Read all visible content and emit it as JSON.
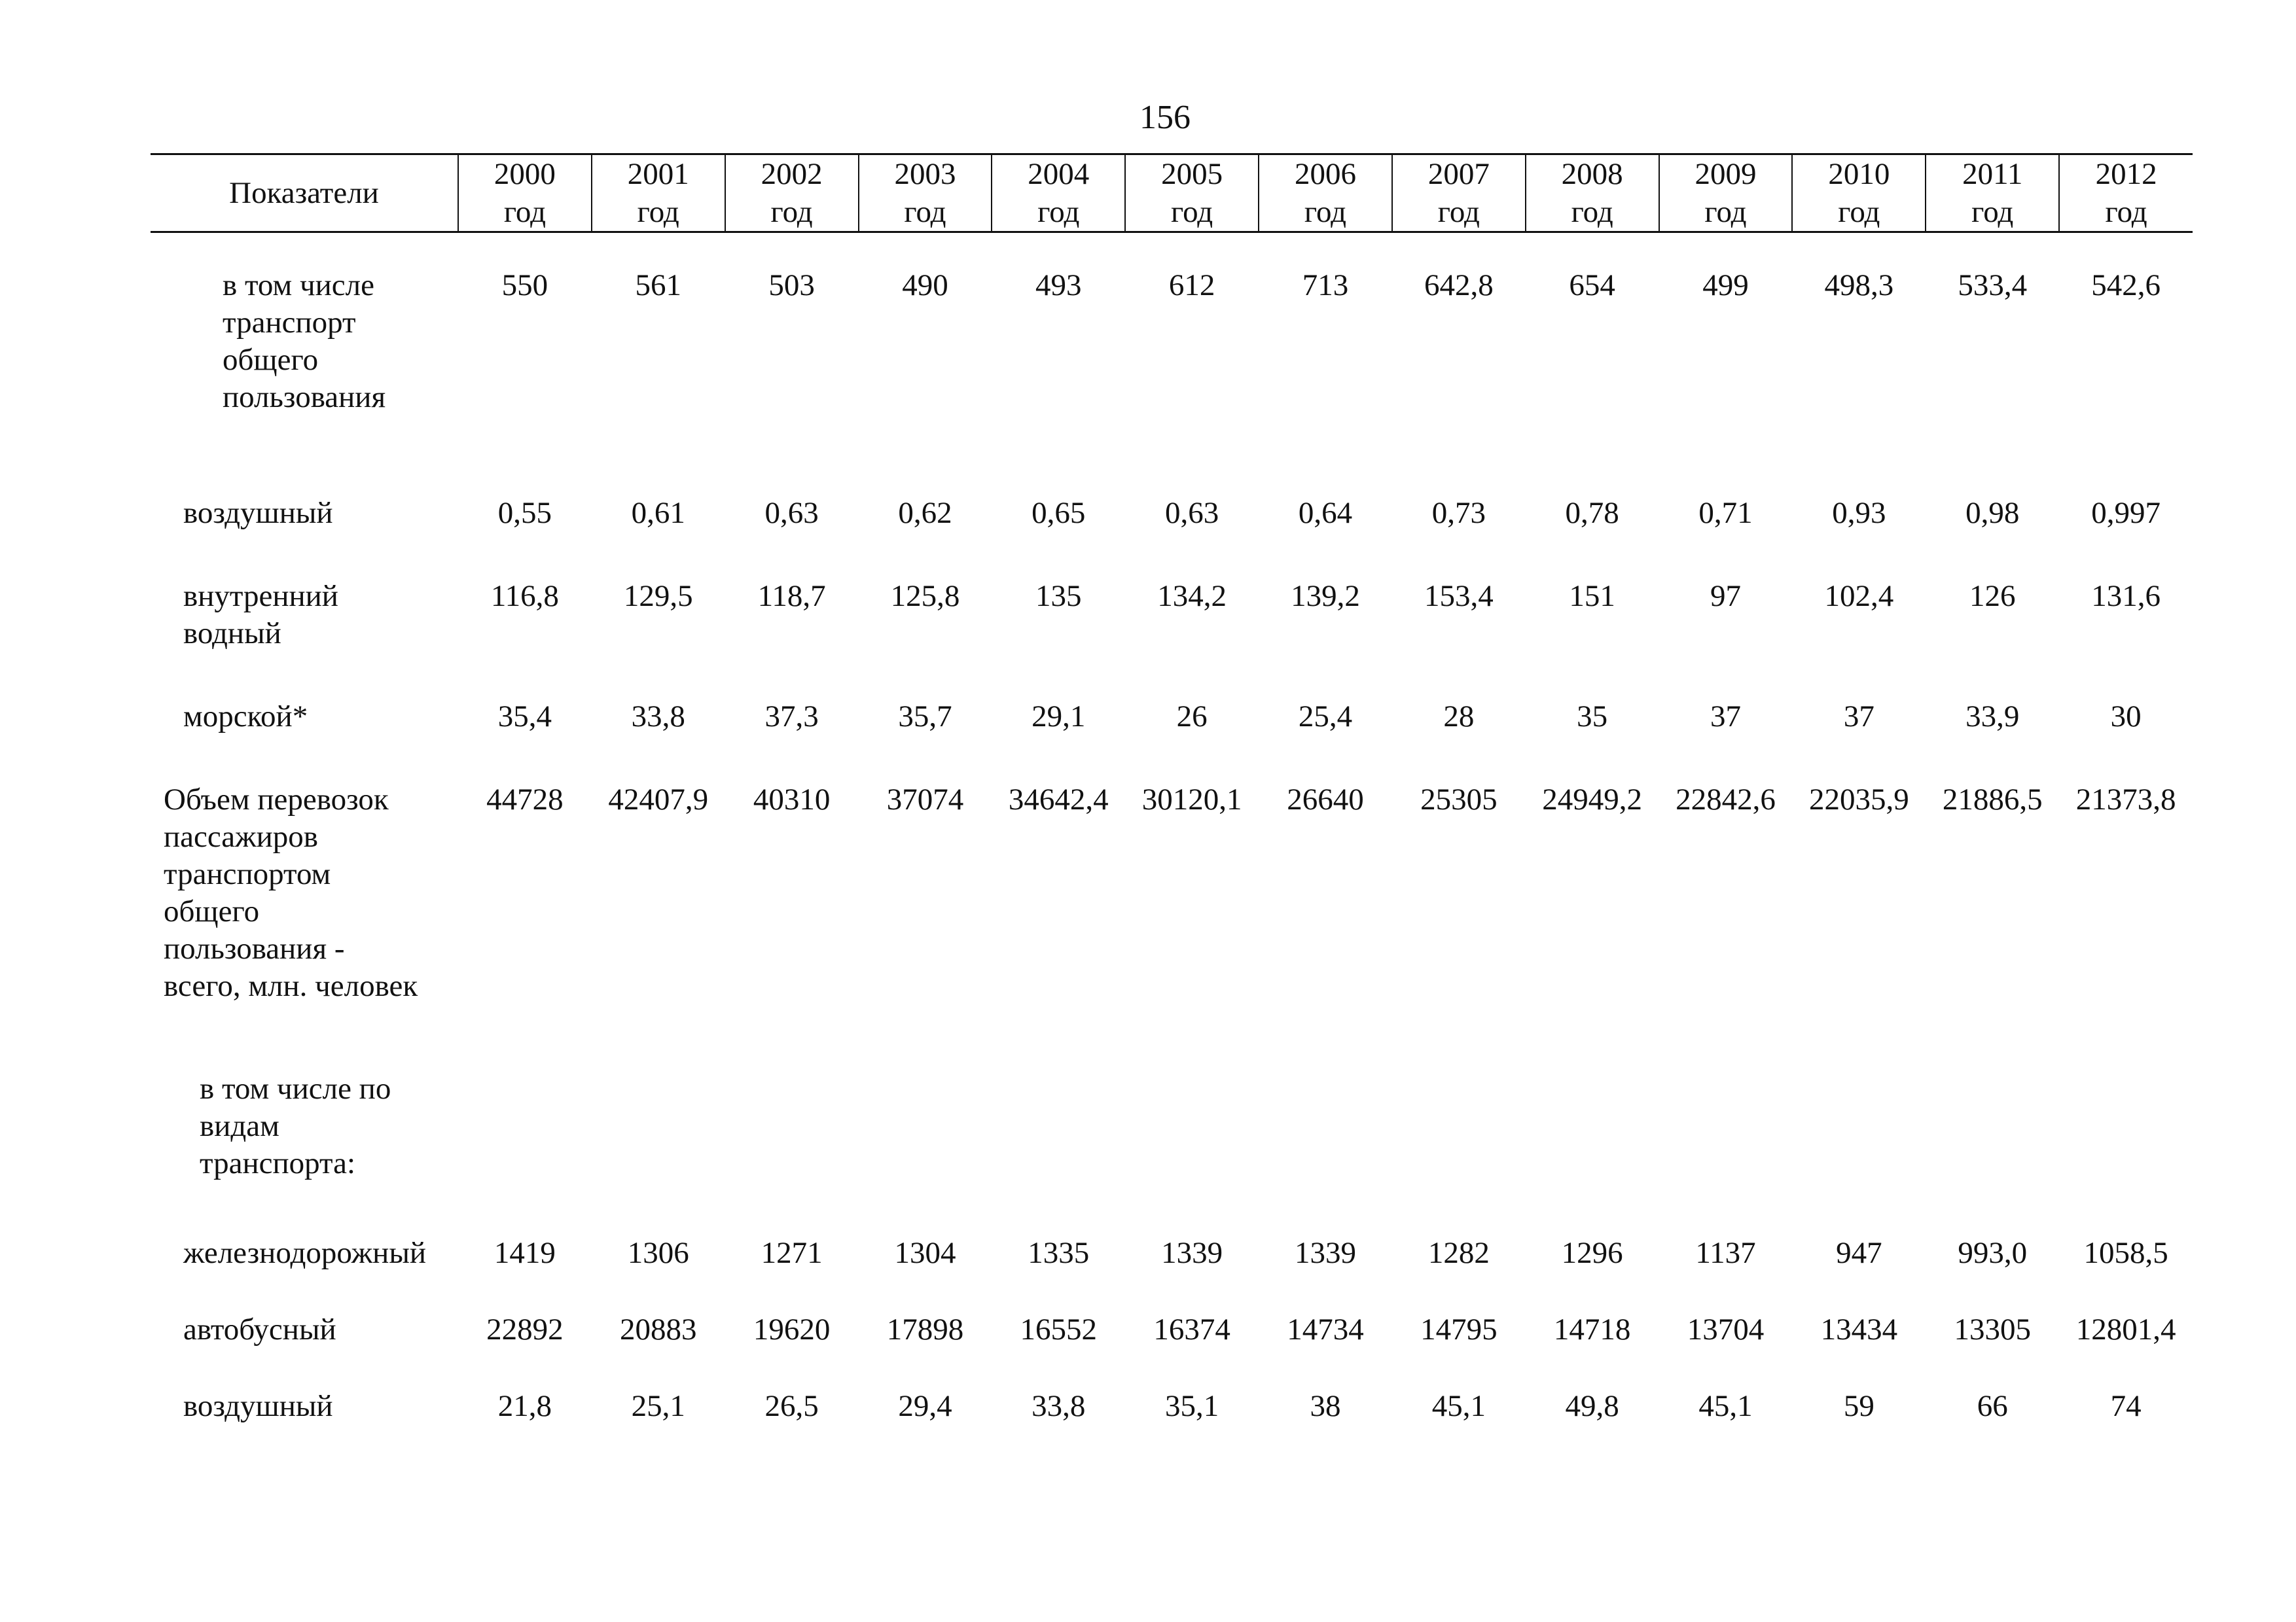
{
  "page_number": "156",
  "header": {
    "label": "Показатели",
    "year_suffix": "год",
    "years": [
      "2000",
      "2001",
      "2002",
      "2003",
      "2004",
      "2005",
      "2006",
      "2007",
      "2008",
      "2009",
      "2010",
      "2011",
      "2012"
    ]
  },
  "rows": [
    {
      "label": "в том числе\nтранспорт\nобщего\nпользования",
      "values": [
        "550",
        "561",
        "503",
        "490",
        "493",
        "612",
        "713",
        "642,8",
        "654",
        "499",
        "498,3",
        "533,4",
        "542,6"
      ]
    },
    {
      "label": "воздушный",
      "values": [
        "0,55",
        "0,61",
        "0,63",
        "0,62",
        "0,65",
        "0,63",
        "0,64",
        "0,73",
        "0,78",
        "0,71",
        "0,93",
        "0,98",
        "0,997"
      ]
    },
    {
      "label": "внутренний\nводный",
      "values": [
        "116,8",
        "129,5",
        "118,7",
        "125,8",
        "135",
        "134,2",
        "139,2",
        "153,4",
        "151",
        "97",
        "102,4",
        "126",
        "131,6"
      ]
    },
    {
      "label": "морской*",
      "values": [
        "35,4",
        "33,8",
        "37,3",
        "35,7",
        "29,1",
        "26",
        "25,4",
        "28",
        "35",
        "37",
        "37",
        "33,9",
        "30"
      ]
    },
    {
      "label": "Объем перевозок\nпассажиров\nтранспортом\nобщего\nпользования -\nвсего, млн. человек",
      "values": [
        "44728",
        "42407,9",
        "40310",
        "37074",
        "34642,4",
        "30120,1",
        "26640",
        "25305",
        "24949,2",
        "22842,6",
        "22035,9",
        "21886,5",
        "21373,8"
      ]
    },
    {
      "label": "в том числе по\nвидам\nтранспорта:",
      "values": []
    },
    {
      "label": "железнодорожный",
      "values": [
        "1419",
        "1306",
        "1271",
        "1304",
        "1335",
        "1339",
        "1339",
        "1282",
        "1296",
        "1137",
        "947",
        "993,0",
        "1058,5"
      ]
    },
    {
      "label": "автобусный",
      "values": [
        "22892",
        "20883",
        "19620",
        "17898",
        "16552",
        "16374",
        "14734",
        "14795",
        "14718",
        "13704",
        "13434",
        "13305",
        "12801,4"
      ]
    },
    {
      "label": "воздушный",
      "values": [
        "21,8",
        "25,1",
        "26,5",
        "29,4",
        "33,8",
        "35,1",
        "38",
        "45,1",
        "49,8",
        "45,1",
        "59",
        "66",
        "74"
      ]
    }
  ]
}
